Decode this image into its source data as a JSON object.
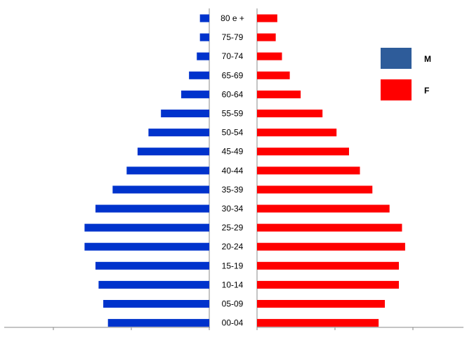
{
  "chart_data": {
    "type": "bar",
    "subtype": "population-pyramid",
    "orientation": "horizontal",
    "categories": [
      "80 e +",
      "75-79",
      "70-74",
      "65-69",
      "60-64",
      "55-59",
      "50-54",
      "45-49",
      "40-44",
      "35-39",
      "30-34",
      "25-29",
      "20-24",
      "15-19",
      "10-14",
      "05-09",
      "00-04"
    ],
    "series": [
      {
        "name": "M",
        "color": "#0033cc",
        "values": [
          0.6,
          0.6,
          0.8,
          1.3,
          1.8,
          3.1,
          3.9,
          4.6,
          5.3,
          6.2,
          7.3,
          8.0,
          8.0,
          7.3,
          7.1,
          6.8,
          6.5
        ]
      },
      {
        "name": "F",
        "color": "#ff0000",
        "values": [
          1.3,
          1.2,
          1.6,
          2.1,
          2.8,
          4.2,
          5.1,
          5.9,
          6.6,
          7.4,
          8.5,
          9.3,
          9.5,
          9.1,
          9.1,
          8.2,
          7.8
        ]
      }
    ],
    "xlim": [
      0,
      10
    ],
    "grid": false,
    "legend": {
      "position": "right",
      "items": [
        {
          "label": "M",
          "color": "#2e5c9a"
        },
        {
          "label": "F",
          "color": "#ff0000"
        }
      ]
    }
  }
}
